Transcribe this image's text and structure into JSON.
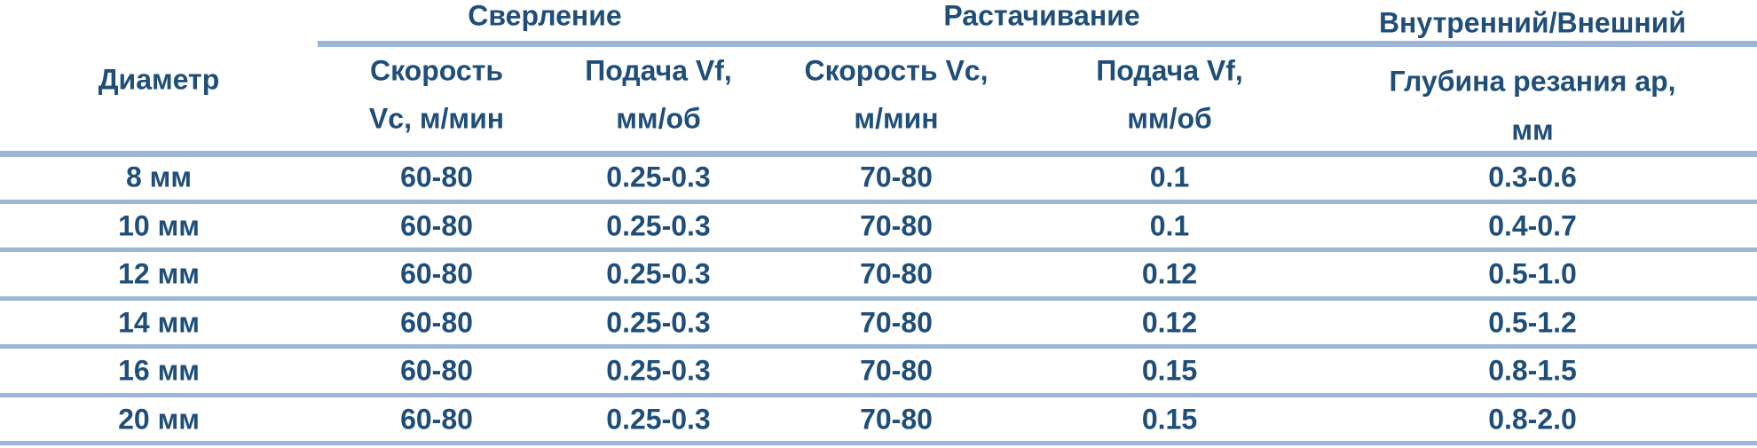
{
  "header": {
    "groups": [
      "Сверление",
      "Растачивание",
      "Внутренний/Внешний"
    ],
    "columns": [
      [
        "Диаметр"
      ],
      [
        "Скорость",
        "Vc, м/мин"
      ],
      [
        "Подача Vf,",
        "мм/об"
      ],
      [
        "Скорость Vc,",
        "м/мин"
      ],
      [
        "Подача Vf,",
        "мм/об"
      ],
      [
        "Глубина резания ap,",
        "мм"
      ]
    ]
  },
  "table": {
    "rows": [
      [
        "8 мм",
        "60-80",
        "0.25-0.3",
        "70-80",
        "0.1",
        "0.3-0.6"
      ],
      [
        "10 мм",
        "60-80",
        "0.25-0.3",
        "70-80",
        "0.1",
        "0.4-0.7"
      ],
      [
        "12 мм",
        "60-80",
        "0.25-0.3",
        "70-80",
        "0.12",
        "0.5-1.0"
      ],
      [
        "14 мм",
        "60-80",
        "0.25-0.3",
        "70-80",
        "0.12",
        "0.5-1.2"
      ],
      [
        "16 мм",
        "60-80",
        "0.25-0.3",
        "70-80",
        "0.15",
        "0.8-1.5"
      ],
      [
        "20 мм",
        "60-80",
        "0.25-0.3",
        "70-80",
        "0.15",
        "0.8-2.0"
      ]
    ]
  }
}
